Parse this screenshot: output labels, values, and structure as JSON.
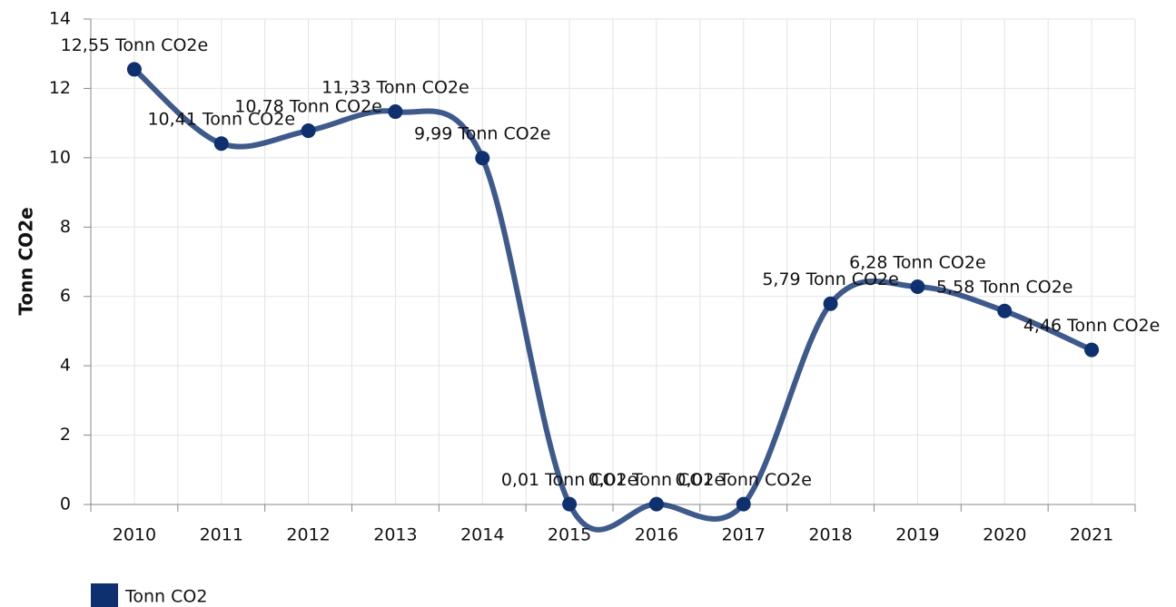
{
  "chart_data": {
    "type": "line",
    "ylabel": "Tonn CO2e",
    "categories": [
      "2010",
      "2011",
      "2012",
      "2013",
      "2014",
      "2015",
      "2016",
      "2017",
      "2018",
      "2019",
      "2020",
      "2021"
    ],
    "series": [
      {
        "name": "Tonn CO2",
        "color": "#0e306e",
        "values": [
          12.55,
          10.41,
          10.78,
          11.33,
          9.99,
          0.01,
          0.01,
          0.01,
          5.79,
          6.28,
          5.58,
          4.46
        ],
        "value_labels": [
          "12,55 Tonn CO2e",
          "10,41 Tonn CO2e",
          "10,78 Tonn CO2e",
          "11,33 Tonn CO2e",
          "9,99 Tonn CO2e",
          "0,01 Tonn CO2e",
          "0,01 Tonn CO2e",
          "0,01 Tonn CO2e",
          "5,79 Tonn CO2e",
          "6,28 Tonn CO2e",
          "5,58 Tonn CO2e",
          "4,46 Tonn CO2e"
        ]
      }
    ],
    "ylim": [
      0,
      14
    ],
    "yticks": [
      0,
      2,
      4,
      6,
      8,
      10,
      12,
      14
    ],
    "grid": true,
    "smooth": true,
    "legend": "bottom-left"
  }
}
